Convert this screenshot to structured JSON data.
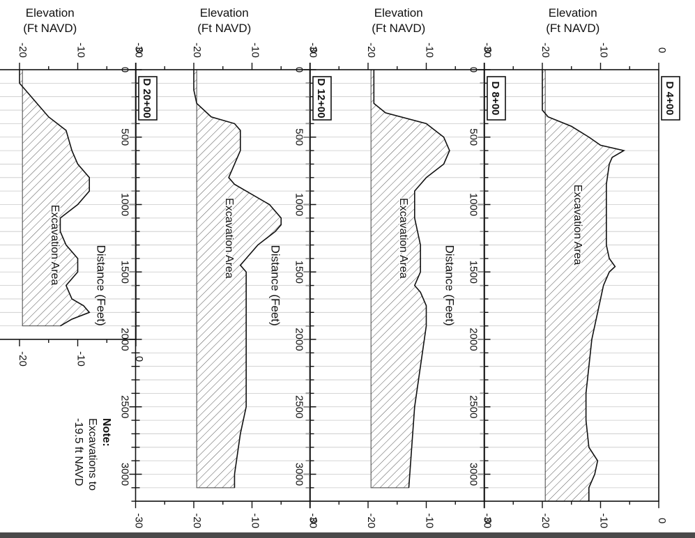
{
  "figure": {
    "note_title": "Note:",
    "note_lines": [
      "Excavations to",
      "-19.5 ft NAVD"
    ],
    "rotated": "clockwise-90"
  },
  "chart_data": [
    {
      "type": "area",
      "title": "D 4+00",
      "xlabel": "Distance (Feet)",
      "ylabel": "Elevation\n(Ft NAVD)",
      "area_label": "Excavation Area",
      "xlim": [
        0,
        3200
      ],
      "ylim": [
        -30,
        0
      ],
      "x_ticks": [
        0,
        500,
        1000,
        1500,
        2000,
        2500,
        3000
      ],
      "y_ticks": [
        -30,
        -20,
        -10,
        0
      ],
      "excavation_level": -19.5,
      "profile": {
        "x": [
          0,
          150,
          300,
          350,
          420,
          500,
          560,
          600,
          650,
          700,
          850,
          1000,
          1150,
          1300,
          1400,
          1460,
          1500,
          1600,
          1800,
          2000,
          2200,
          2400,
          2600,
          2800,
          2900,
          3000,
          3100,
          3200
        ],
        "y": [
          -20,
          -20,
          -20,
          -19,
          -15,
          -12,
          -10,
          -6,
          -8,
          -8.5,
          -9,
          -9,
          -9,
          -9,
          -8.5,
          -7.5,
          -8.5,
          -9.5,
          -10.5,
          -11.5,
          -12,
          -12.5,
          -12.5,
          -12,
          -10.5,
          -11,
          -12,
          -12
        ]
      },
      "excavation_extent": [
        0,
        3200
      ]
    },
    {
      "type": "area",
      "title": "D 8+00",
      "xlabel": "Distance (Feet)",
      "ylabel": "Elevation\n(Ft NAVD)",
      "area_label": "Excavation Area",
      "xlim": [
        0,
        3200
      ],
      "ylim": [
        -30,
        0
      ],
      "x_ticks": [
        0,
        500,
        1000,
        1500,
        2000,
        2500,
        3000
      ],
      "y_ticks": [
        -30,
        -20,
        -10,
        0
      ],
      "excavation_level": -19.5,
      "profile": {
        "x": [
          0,
          150,
          250,
          320,
          400,
          500,
          600,
          700,
          800,
          900,
          1100,
          1300,
          1500,
          1600,
          1650,
          1750,
          1900,
          2200,
          2500,
          2800,
          3100
        ],
        "y": [
          -19,
          -19,
          -19,
          -17,
          -10,
          -7,
          -6,
          -7,
          -10,
          -12,
          -12,
          -11,
          -11,
          -12,
          -11,
          -10,
          -10,
          -11,
          -12,
          -12.5,
          -13
        ]
      },
      "excavation_extent": [
        0,
        3100
      ]
    },
    {
      "type": "area",
      "title": "D 12+00",
      "xlabel": "Distance (Feet)",
      "ylabel": "Elevation\n(Ft NAVD)",
      "area_label": "Excavation Area",
      "xlim": [
        0,
        3200
      ],
      "ylim": [
        -30,
        0
      ],
      "x_ticks": [
        0,
        500,
        1000,
        1500,
        2000,
        2500,
        3000
      ],
      "y_ticks": [
        -30,
        -20,
        -10,
        0
      ],
      "excavation_level": -19.5,
      "profile": {
        "x": [
          0,
          150,
          250,
          350,
          400,
          450,
          500,
          600,
          700,
          800,
          850,
          900,
          1000,
          1100,
          1150,
          1200,
          1300,
          1400,
          1450,
          1500,
          1700,
          2000,
          2500,
          2700,
          3000,
          3100
        ],
        "y": [
          -20,
          -20,
          -19.5,
          -17,
          -13,
          -12,
          -12,
          -12,
          -13,
          -14,
          -13,
          -11,
          -7,
          -5,
          -5,
          -6,
          -9,
          -11,
          -12,
          -11,
          -11,
          -11,
          -11,
          -12,
          -13,
          -13
        ]
      },
      "excavation_extent": [
        0,
        3100
      ]
    },
    {
      "type": "area",
      "title": "D 20+00",
      "xlabel": "Distance (Feet)",
      "ylabel": "Elevation\n(Ft NAVD)",
      "area_label": "Excavation Area",
      "xlim": [
        0,
        2000
      ],
      "ylim": [
        -30,
        0
      ],
      "x_ticks": [
        0,
        500,
        1000,
        1500,
        2000
      ],
      "y_ticks": [
        -30,
        -20,
        -10,
        0
      ],
      "excavation_level": -19.5,
      "profile": {
        "x": [
          0,
          100,
          150,
          250,
          350,
          450,
          600,
          700,
          800,
          900,
          1000,
          1100,
          1200,
          1300,
          1400,
          1500,
          1600,
          1700,
          1750,
          1800,
          1850,
          1900
        ],
        "y": [
          -20,
          -20,
          -19,
          -17,
          -15,
          -12,
          -11,
          -10,
          -8,
          -8,
          -10,
          -13,
          -13,
          -12,
          -10,
          -10,
          -12,
          -11,
          -9,
          -8,
          -11,
          -13
        ]
      },
      "excavation_extent": [
        0,
        1900
      ]
    }
  ]
}
